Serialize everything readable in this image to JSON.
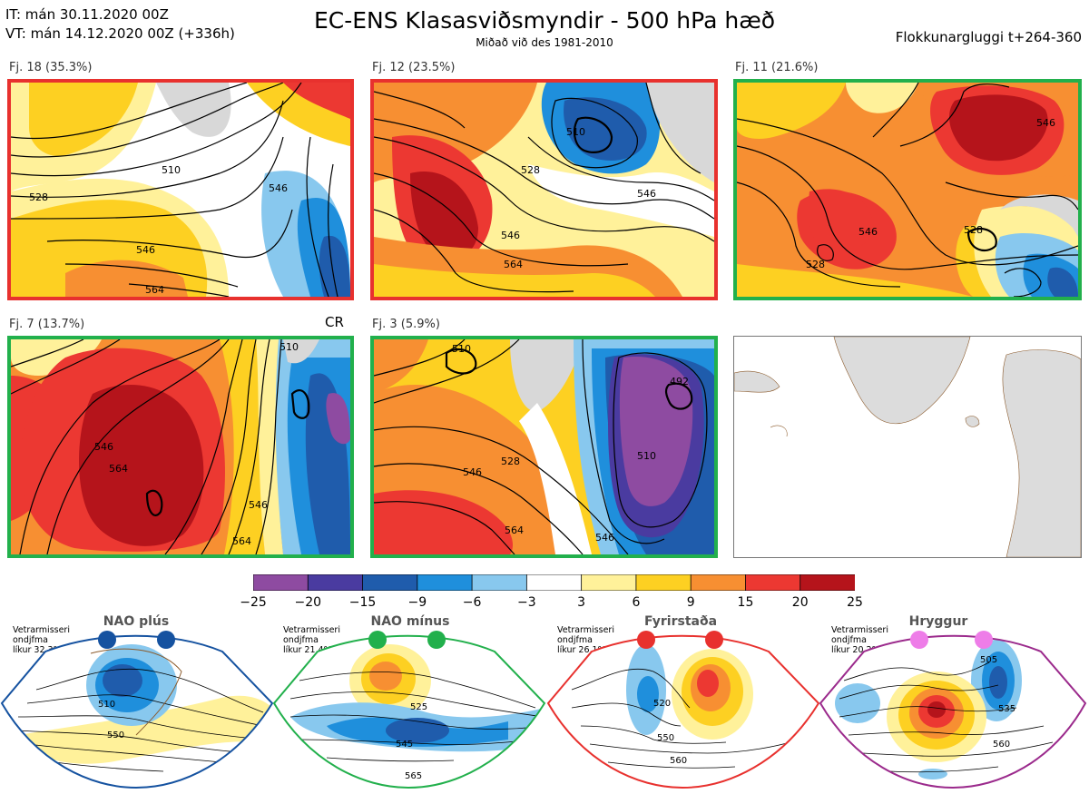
{
  "header": {
    "it_line": "IT: mán 30.11.2020 00Z",
    "vt_line": "VT: mán 14.12.2020 00Z  (+336h)",
    "title": "EC-ENS Klasasviðsmyndir - 500 hPa hæð",
    "subtitle": "Miðað við des 1981-2010",
    "window": "Flokkunargluggi t+264-360"
  },
  "panels": [
    {
      "label": "Fj. 18 (35.3%)",
      "border_color": "#e8312e",
      "contours": [
        "510",
        "528",
        "546",
        "564",
        "546"
      ]
    },
    {
      "label": "Fj. 12 (23.5%)",
      "border_color": "#e8312e",
      "contours": [
        "510",
        "528",
        "546",
        "564",
        "546"
      ]
    },
    {
      "label": "Fj. 11 (21.6%)",
      "border_color": "#22b04c",
      "contours": [
        "546",
        "528",
        "546",
        "528"
      ]
    },
    {
      "label": "Fj. 7 (13.7%)",
      "border_color": "#22b04c",
      "contours": [
        "546",
        "564",
        "546",
        "564",
        "510"
      ]
    },
    {
      "label": "Fj. 3 (5.9%)",
      "border_color": "#22b04c",
      "contours": [
        "510",
        "528",
        "546",
        "564",
        "492",
        "510",
        "546"
      ]
    }
  ],
  "cr_label": "CR",
  "colorbar": {
    "ticks": [
      "−25",
      "−20",
      "−15",
      "−9",
      "−6",
      "−3",
      "3",
      "6",
      "9",
      "15",
      "20",
      "25"
    ],
    "colors": [
      "#8e4ba1",
      "#4a3ba0",
      "#1f5cac",
      "#1f8fdc",
      "#88c8ee",
      "#ffffff",
      "#fff19a",
      "#fdd022",
      "#f78f32",
      "#ec3832",
      "#b5141b"
    ]
  },
  "regimes": [
    {
      "title": "NAO plús",
      "info": [
        "Vetrarmisseri",
        "ondjfma",
        "líkur 32,3%"
      ],
      "color": "#1552a0",
      "contours": [
        "510",
        "550"
      ]
    },
    {
      "title": "NAO mínus",
      "info": [
        "Vetrarmisseri",
        "ondjfma",
        "líkur 21,4%"
      ],
      "color": "#22b04c",
      "contours": [
        "525",
        "545",
        "565"
      ]
    },
    {
      "title": "Fyrirstaða",
      "info": [
        "Vetrarmisseri",
        "ondjfma",
        "líkur 26,1%"
      ],
      "color": "#e8312e",
      "contours": [
        "520",
        "550",
        "560"
      ]
    },
    {
      "title": "Hryggur",
      "info": [
        "Vetrarmisseri",
        "ondjfma",
        "líkur 20,2%"
      ],
      "color": "#9b2a8c",
      "contours": [
        "505",
        "535",
        "560"
      ]
    }
  ]
}
